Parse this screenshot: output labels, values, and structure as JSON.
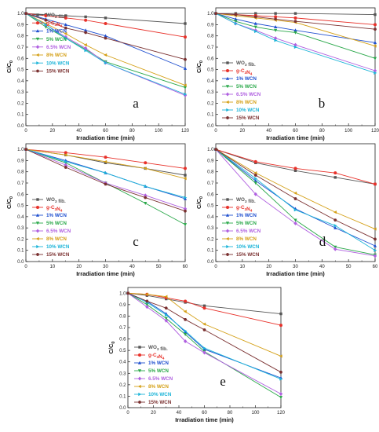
{
  "figure": {
    "series_colors": [
      "#555555",
      "#e8312a",
      "#1f4fcf",
      "#2aa84a",
      "#b060e0",
      "#d4a017",
      "#1cb4d8",
      "#7a3030"
    ]
  },
  "chart_data": [
    {
      "type": "line",
      "panel_label": "a",
      "xlabel": "Irradiation time (min)",
      "ylabel": "C/C0",
      "xlim": [
        0,
        120
      ],
      "ylim": [
        0,
        1.05
      ],
      "x_ticks": [
        0,
        20,
        40,
        60,
        80,
        100,
        120
      ],
      "y_ticks": [
        0.0,
        0.1,
        0.2,
        0.3,
        0.4,
        0.5,
        0.6,
        0.7,
        0.8,
        0.9,
        1.0
      ],
      "x_tick_labels": [
        "0",
        "20",
        "40",
        "60",
        "80",
        "100",
        "120"
      ],
      "y_tick_labels": [
        "0.0",
        "0.1",
        "0.2",
        "0.3",
        "0.4",
        "0.5",
        "0.6",
        "0.7",
        "0.8",
        "0.9",
        "1.0"
      ],
      "grid": false,
      "legend_position": "top-left",
      "x": [
        0,
        15,
        30,
        45,
        60,
        120
      ],
      "series": [
        {
          "name": "WO₃ fib.",
          "values": [
            1.0,
            0.99,
            0.98,
            0.97,
            0.96,
            0.91
          ]
        },
        {
          "name": "g-C₃N₄",
          "values": [
            1.0,
            0.98,
            0.96,
            0.94,
            0.91,
            0.79
          ]
        },
        {
          "name": "1% WCN",
          "values": [
            1.0,
            0.95,
            0.9,
            0.85,
            0.8,
            0.51
          ]
        },
        {
          "name": "5% WCN",
          "values": [
            1.0,
            0.88,
            0.78,
            0.68,
            0.57,
            0.34
          ]
        },
        {
          "name": "6.5% WCN",
          "values": [
            1.0,
            0.9,
            0.79,
            0.69,
            0.56,
            0.27
          ]
        },
        {
          "name": "8% WCN",
          "values": [
            1.0,
            0.91,
            0.82,
            0.72,
            0.63,
            0.36
          ]
        },
        {
          "name": "10% WCN",
          "values": [
            1.0,
            0.9,
            0.78,
            0.67,
            0.56,
            0.28
          ]
        },
        {
          "name": "15% WCN",
          "values": [
            1.0,
            0.94,
            0.87,
            0.83,
            0.78,
            0.59
          ]
        }
      ]
    },
    {
      "type": "line",
      "panel_label": "b",
      "xlabel": "Irradiation time (min)",
      "ylabel": "C/C0",
      "xlim": [
        0,
        120
      ],
      "ylim": [
        0,
        1.05
      ],
      "x_ticks": [
        0,
        20,
        40,
        60,
        80,
        100,
        120
      ],
      "y_ticks": [
        0.0,
        0.1,
        0.2,
        0.3,
        0.4,
        0.5,
        0.6,
        0.7,
        0.8,
        0.9,
        1.0
      ],
      "x_tick_labels": [
        "0",
        "20",
        "40",
        "60",
        "80",
        "100",
        "120"
      ],
      "y_tick_labels": [
        "0.0",
        "0.1",
        "0.2",
        "0.3",
        "0.4",
        "0.5",
        "0.6",
        "0.7",
        "0.8",
        "0.9",
        "1.0"
      ],
      "grid": false,
      "legend_position": "bottom-left",
      "x": [
        0,
        15,
        30,
        45,
        60,
        120
      ],
      "series": [
        {
          "name": "WO₃ fib.",
          "values": [
            1.0,
            1.0,
            1.0,
            1.0,
            1.0,
            0.99
          ]
        },
        {
          "name": "g-C₃N₄",
          "values": [
            1.0,
            0.99,
            0.98,
            0.97,
            0.96,
            0.9
          ]
        },
        {
          "name": "1% WCN",
          "values": [
            1.0,
            0.95,
            0.91,
            0.88,
            0.85,
            0.74
          ]
        },
        {
          "name": "5% WCN",
          "values": [
            1.0,
            0.93,
            0.88,
            0.85,
            0.83,
            0.6
          ]
        },
        {
          "name": "6.5% WCN",
          "values": [
            1.0,
            0.91,
            0.85,
            0.78,
            0.72,
            0.49
          ]
        },
        {
          "name": "8% WCN",
          "values": [
            1.0,
            0.98,
            0.96,
            0.94,
            0.92,
            0.71
          ]
        },
        {
          "name": "10% WCN",
          "values": [
            1.0,
            0.91,
            0.84,
            0.76,
            0.7,
            0.47
          ]
        },
        {
          "name": "15% WCN",
          "values": [
            1.0,
            0.99,
            0.97,
            0.95,
            0.93,
            0.86
          ]
        }
      ]
    },
    {
      "type": "line",
      "panel_label": "c",
      "xlabel": "Irradiation time (min)",
      "ylabel": "C/C0",
      "xlim": [
        0,
        60
      ],
      "ylim": [
        0,
        1.05
      ],
      "x_ticks": [
        0,
        10,
        20,
        30,
        40,
        50,
        60
      ],
      "y_ticks": [
        0.0,
        0.1,
        0.2,
        0.3,
        0.4,
        0.5,
        0.6,
        0.7,
        0.8,
        0.9,
        1.0
      ],
      "x_tick_labels": [
        "0",
        "10",
        "20",
        "30",
        "40",
        "50",
        "60"
      ],
      "y_tick_labels": [
        "0.0",
        "0.1",
        "0.2",
        "0.3",
        "0.4",
        "0.5",
        "0.6",
        "0.7",
        "0.8",
        "0.9",
        "1.0"
      ],
      "grid": false,
      "legend_position": "bottom-left",
      "x": [
        0,
        15,
        30,
        45,
        60
      ],
      "series": [
        {
          "name": "WO₃ fib.",
          "values": [
            1.0,
            0.95,
            0.88,
            0.83,
            0.77
          ]
        },
        {
          "name": "g-C₃N₄",
          "values": [
            1.0,
            0.97,
            0.93,
            0.88,
            0.83
          ]
        },
        {
          "name": "1% WCN",
          "values": [
            1.0,
            0.9,
            0.79,
            0.67,
            0.56
          ]
        },
        {
          "name": "5% WCN",
          "values": [
            1.0,
            0.88,
            0.7,
            0.52,
            0.33
          ]
        },
        {
          "name": "6.5% WCN",
          "values": [
            1.0,
            0.86,
            0.7,
            0.59,
            0.47
          ]
        },
        {
          "name": "8% WCN",
          "values": [
            1.0,
            0.95,
            0.89,
            0.83,
            0.74
          ]
        },
        {
          "name": "10% WCN",
          "values": [
            1.0,
            0.89,
            0.79,
            0.67,
            0.57
          ]
        },
        {
          "name": "15% WCN",
          "values": [
            1.0,
            0.84,
            0.69,
            0.57,
            0.45
          ]
        }
      ]
    },
    {
      "type": "line",
      "panel_label": "d",
      "xlabel": "Irradiation time (min)",
      "ylabel": "C/C0",
      "xlim": [
        0,
        60
      ],
      "ylim": [
        0,
        1.05
      ],
      "x_ticks": [
        0,
        10,
        20,
        30,
        40,
        50,
        60
      ],
      "y_ticks": [
        0.0,
        0.1,
        0.2,
        0.3,
        0.4,
        0.5,
        0.6,
        0.7,
        0.8,
        0.9,
        1.0
      ],
      "x_tick_labels": [
        "0",
        "10",
        "20",
        "30",
        "40",
        "50",
        "60"
      ],
      "y_tick_labels": [
        "0.0",
        "0.1",
        "0.2",
        "0.3",
        "0.4",
        "0.5",
        "0.6",
        "0.7",
        "0.8",
        "0.9",
        "1.0"
      ],
      "grid": false,
      "legend_position": "bottom-left",
      "x": [
        0,
        15,
        30,
        45,
        60
      ],
      "series": [
        {
          "name": "WO₃ fib.",
          "values": [
            1.0,
            0.88,
            0.81,
            0.75,
            0.69
          ]
        },
        {
          "name": "g-C₃N₄",
          "values": [
            1.0,
            0.89,
            0.83,
            0.79,
            0.69
          ]
        },
        {
          "name": "1% WCN",
          "values": [
            1.0,
            0.72,
            0.47,
            0.3,
            0.14
          ]
        },
        {
          "name": "5% WCN",
          "values": [
            1.0,
            0.7,
            0.37,
            0.13,
            0.06
          ]
        },
        {
          "name": "6.5% WCN",
          "values": [
            1.0,
            0.6,
            0.34,
            0.11,
            0.05
          ]
        },
        {
          "name": "8% WCN",
          "values": [
            1.0,
            0.79,
            0.61,
            0.44,
            0.29
          ]
        },
        {
          "name": "10% WCN",
          "values": [
            1.0,
            0.74,
            0.46,
            0.32,
            0.1
          ]
        },
        {
          "name": "15% WCN",
          "values": [
            1.0,
            0.77,
            0.56,
            0.37,
            0.2
          ]
        }
      ]
    },
    {
      "type": "line",
      "panel_label": "e",
      "xlabel": "Irradiation time (min)",
      "ylabel": "C/C0",
      "xlim": [
        0,
        120
      ],
      "ylim": [
        0,
        1.05
      ],
      "x_ticks": [
        0,
        20,
        40,
        60,
        80,
        100,
        120
      ],
      "y_ticks": [
        0.0,
        0.1,
        0.2,
        0.3,
        0.4,
        0.5,
        0.6,
        0.7,
        0.8,
        0.9,
        1.0
      ],
      "x_tick_labels": [
        "0",
        "20",
        "40",
        "60",
        "80",
        "100",
        "120"
      ],
      "y_tick_labels": [
        "0.0",
        "0.1",
        "0.2",
        "0.3",
        "0.4",
        "0.5",
        "0.6",
        "0.7",
        "0.8",
        "0.9",
        "1.0"
      ],
      "grid": false,
      "legend_position": "bottom-left",
      "x": [
        0,
        15,
        30,
        45,
        60,
        120
      ],
      "series": [
        {
          "name": "WO₃ fib.",
          "values": [
            1.0,
            0.98,
            0.95,
            0.92,
            0.89,
            0.82
          ]
        },
        {
          "name": "g-C₃N₄",
          "values": [
            1.0,
            0.99,
            0.96,
            0.93,
            0.87,
            0.72
          ]
        },
        {
          "name": "1% WCN",
          "values": [
            1.0,
            0.93,
            0.82,
            0.66,
            0.51,
            0.26
          ]
        },
        {
          "name": "5% WCN",
          "values": [
            1.0,
            0.9,
            0.78,
            0.64,
            0.49,
            0.09
          ]
        },
        {
          "name": "6.5% WCN",
          "values": [
            1.0,
            0.88,
            0.76,
            0.58,
            0.48,
            0.12
          ]
        },
        {
          "name": "8% WCN",
          "values": [
            1.0,
            0.99,
            0.97,
            0.84,
            0.73,
            0.45
          ]
        },
        {
          "name": "10% WCN",
          "values": [
            1.0,
            0.92,
            0.81,
            0.67,
            0.52,
            0.25
          ]
        },
        {
          "name": "15% WCN",
          "values": [
            1.0,
            0.93,
            0.87,
            0.77,
            0.68,
            0.31
          ]
        }
      ]
    }
  ]
}
